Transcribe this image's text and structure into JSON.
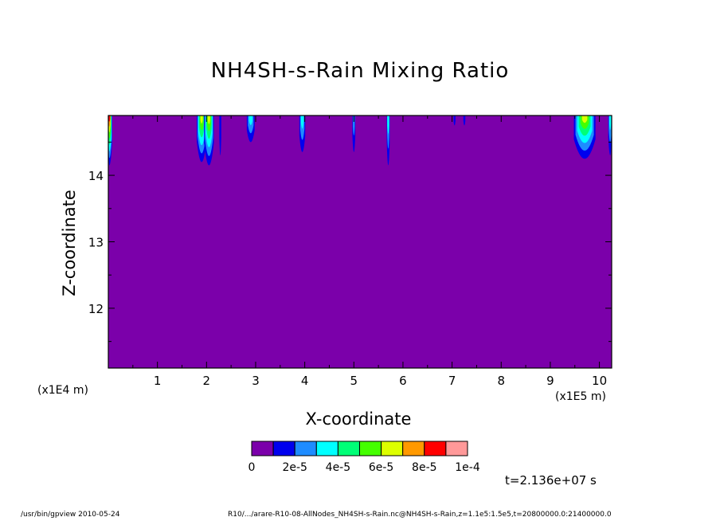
{
  "title": "NH4SH-s-Rain Mixing Ratio",
  "xlabel": "X-coordinate",
  "ylabel": "Z-coordinate",
  "x_unit": "(x1E5 m)",
  "y_unit": "(x1E4 m)",
  "timestamp": "t=2.136e+07 s",
  "footer_left": "/usr/bin/gpview  2010-05-24",
  "footer_right": "R10/.../arare-R10-08-AllNodes_NH4SH-s-Rain.nc@NH4SH-s-Rain,z=1.1e5:1.5e5,t=20800000.0:21400000.0",
  "colors": {
    "background_fill": "#7b00aa",
    "levels": [
      "#7b00aa",
      "#0000ee",
      "#1e8cff",
      "#00ffff",
      "#00ff77",
      "#44ff00",
      "#ddff00",
      "#ff9900",
      "#ff0000",
      "#ff9999"
    ]
  },
  "chart_data": {
    "type": "heatmap",
    "title": "NH4SH-s-Rain Mixing Ratio",
    "xlabel": "X-coordinate",
    "ylabel": "Z-coordinate",
    "xlim": [
      0.0,
      10.25
    ],
    "ylim": [
      11.1,
      14.9
    ],
    "x_ticks": [
      "1",
      "2",
      "3",
      "4",
      "5",
      "6",
      "7",
      "8",
      "9",
      "10"
    ],
    "y_ticks": [
      "12",
      "13",
      "14"
    ],
    "colorbar_labels": [
      "0",
      "2e-5",
      "4e-5",
      "6e-5",
      "8e-5",
      "1e-4"
    ],
    "colorbar_levels": [
      0,
      1e-05,
      2e-05,
      3e-05,
      4e-05,
      5e-05,
      6e-05,
      7e-05,
      8e-05,
      9e-05,
      0.0001
    ],
    "features": [
      {
        "x": 0.02,
        "half_width": 0.06,
        "z_bottom": 14.15,
        "peak_level": 8
      },
      {
        "x": 1.9,
        "half_width": 0.1,
        "z_bottom": 14.2,
        "peak_level": 6
      },
      {
        "x": 2.05,
        "half_width": 0.1,
        "z_bottom": 14.15,
        "peak_level": 6
      },
      {
        "x": 2.28,
        "half_width": 0.02,
        "z_bottom": 14.3,
        "peak_level": 1
      },
      {
        "x": 2.9,
        "half_width": 0.08,
        "z_bottom": 14.5,
        "peak_level": 3
      },
      {
        "x": 3.95,
        "half_width": 0.06,
        "z_bottom": 14.35,
        "peak_level": 3
      },
      {
        "x": 5.0,
        "half_width": 0.03,
        "z_bottom": 14.35,
        "peak_level": 2
      },
      {
        "x": 5.7,
        "half_width": 0.03,
        "z_bottom": 14.15,
        "peak_level": 3
      },
      {
        "x": 7.05,
        "half_width": 0.02,
        "z_bottom": 14.75,
        "peak_level": 1
      },
      {
        "x": 7.25,
        "half_width": 0.02,
        "z_bottom": 14.75,
        "peak_level": 1
      },
      {
        "x": 9.7,
        "half_width": 0.22,
        "z_bottom": 14.25,
        "peak_level": 6
      },
      {
        "x": 10.22,
        "half_width": 0.04,
        "z_bottom": 14.3,
        "peak_level": 3
      }
    ]
  }
}
